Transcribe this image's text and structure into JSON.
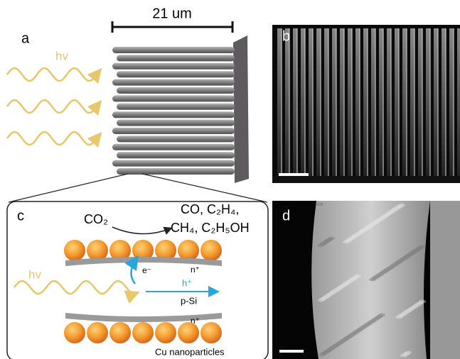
{
  "panels": [
    {
      "label": "a",
      "scale_bar": "21 um",
      "light": "hv"
    },
    {
      "label": "b"
    },
    {
      "label": "c",
      "reactant": "CO₂",
      "products": [
        "CO, C₂H₄,",
        "CH₄, C₂H₅OH"
      ],
      "electron": "e⁻",
      "hole": "h⁺",
      "top_layer": "n⁺",
      "bottom_layer": "n⁺",
      "bulk": "p-Si",
      "light": "hv",
      "particles": "Cu nanoparticles"
    },
    {
      "label": "d"
    }
  ]
}
